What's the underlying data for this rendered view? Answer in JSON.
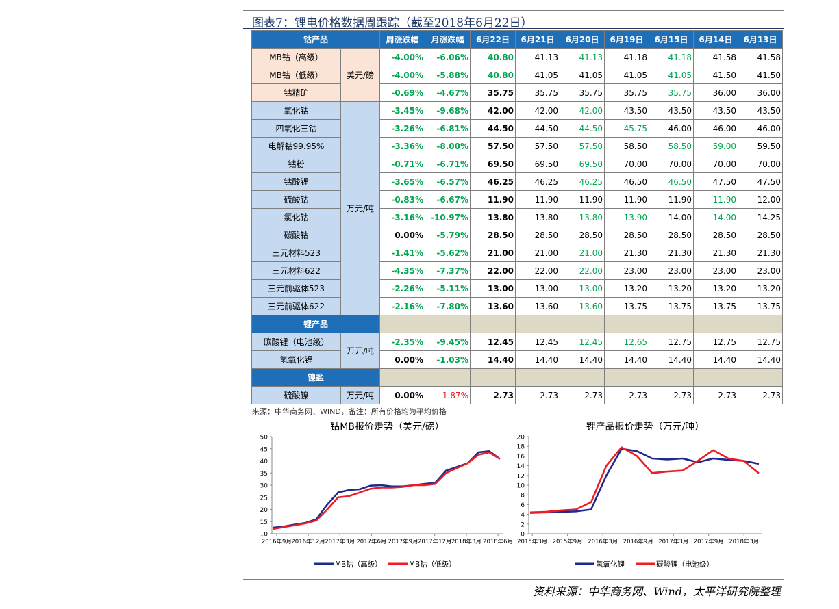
{
  "figure_title": "图表7：锂电价格数据周跟踪（截至2018年6月22日）",
  "table": {
    "headers": [
      "钴产品",
      "周涨跌幅",
      "月涨跌幅",
      "6月22日",
      "6月21日",
      "6月20日",
      "6月19日",
      "6月15日",
      "6月14日",
      "6月13日"
    ],
    "cobalt_mb_unit": "美元/磅",
    "cobalt_unit": "万元/吨",
    "lithium_unit": "万元/吨",
    "nickel_unit": "万元/吨",
    "lithium_section": "锂产品",
    "nickel_section": "镍盐",
    "rows_mb": [
      {
        "name": "MB钴（高级）",
        "w": "-4.00%",
        "m": "-6.06%",
        "v": [
          "40.80",
          "41.13",
          "41.13",
          "41.18",
          "41.18",
          "41.58",
          "41.58"
        ],
        "c": [
          1,
          0,
          1,
          0,
          1,
          0,
          0
        ]
      },
      {
        "name": "MB钴（低级）",
        "w": "-4.00%",
        "m": "-5.88%",
        "v": [
          "40.80",
          "41.05",
          "41.05",
          "41.05",
          "41.05",
          "41.50",
          "41.50"
        ],
        "c": [
          1,
          0,
          0,
          0,
          1,
          0,
          0
        ]
      },
      {
        "name": "钴精矿",
        "w": "-0.69%",
        "m": "-4.67%",
        "v": [
          "35.75",
          "35.75",
          "35.75",
          "35.75",
          "35.75",
          "36.00",
          "36.00"
        ],
        "c": [
          0,
          0,
          0,
          0,
          1,
          0,
          0
        ]
      }
    ],
    "rows_cobalt": [
      {
        "name": "氧化钴",
        "w": "-3.45%",
        "m": "-9.68%",
        "v": [
          "42.00",
          "42.00",
          "42.00",
          "43.50",
          "43.50",
          "43.50",
          "43.50"
        ],
        "c": [
          0,
          0,
          1,
          0,
          0,
          0,
          0
        ]
      },
      {
        "name": "四氧化三钴",
        "w": "-3.26%",
        "m": "-6.81%",
        "v": [
          "44.50",
          "44.50",
          "44.50",
          "45.75",
          "46.00",
          "46.00",
          "46.00"
        ],
        "c": [
          0,
          0,
          1,
          1,
          0,
          0,
          0
        ]
      },
      {
        "name": "电解钴99.95%",
        "w": "-3.36%",
        "m": "-8.00%",
        "v": [
          "57.50",
          "57.50",
          "57.50",
          "58.50",
          "58.50",
          "59.00",
          "59.50"
        ],
        "c": [
          0,
          0,
          1,
          0,
          1,
          1,
          0
        ]
      },
      {
        "name": "钴粉",
        "w": "-0.71%",
        "m": "-6.71%",
        "v": [
          "69.50",
          "69.50",
          "69.50",
          "70.00",
          "70.00",
          "70.00",
          "70.00"
        ],
        "c": [
          0,
          0,
          1,
          0,
          0,
          0,
          0
        ]
      },
      {
        "name": "钴酸锂",
        "w": "-3.65%",
        "m": "-6.57%",
        "v": [
          "46.25",
          "46.25",
          "46.25",
          "46.50",
          "46.50",
          "47.50",
          "47.50"
        ],
        "c": [
          0,
          0,
          1,
          0,
          1,
          0,
          0
        ]
      },
      {
        "name": "硫酸钴",
        "w": "-0.83%",
        "m": "-6.67%",
        "v": [
          "11.90",
          "11.90",
          "11.90",
          "11.90",
          "11.90",
          "11.90",
          "12.00"
        ],
        "c": [
          0,
          0,
          0,
          0,
          0,
          1,
          0
        ]
      },
      {
        "name": "氯化钴",
        "w": "-3.16%",
        "m": "-10.97%",
        "v": [
          "13.80",
          "13.80",
          "13.80",
          "13.90",
          "14.00",
          "14.00",
          "14.25"
        ],
        "c": [
          0,
          0,
          1,
          1,
          0,
          1,
          0
        ]
      },
      {
        "name": "碳酸钴",
        "w": "0.00%",
        "m": "-5.79%",
        "v": [
          "28.50",
          "28.50",
          "28.50",
          "28.50",
          "28.50",
          "28.50",
          "28.50"
        ],
        "c": [
          0,
          0,
          0,
          0,
          0,
          0,
          0
        ]
      },
      {
        "name": "三元材料523",
        "w": "-1.41%",
        "m": "-5.62%",
        "v": [
          "21.00",
          "21.00",
          "21.00",
          "21.30",
          "21.30",
          "21.30",
          "21.30"
        ],
        "c": [
          0,
          0,
          1,
          0,
          0,
          0,
          0
        ]
      },
      {
        "name": "三元材料622",
        "w": "-4.35%",
        "m": "-7.37%",
        "v": [
          "22.00",
          "22.00",
          "22.00",
          "23.00",
          "23.00",
          "23.00",
          "23.00"
        ],
        "c": [
          0,
          0,
          1,
          0,
          0,
          0,
          0
        ]
      },
      {
        "name": "三元前驱体523",
        "w": "-2.26%",
        "m": "-5.11%",
        "v": [
          "13.00",
          "13.00",
          "13.00",
          "13.20",
          "13.20",
          "13.20",
          "13.20"
        ],
        "c": [
          0,
          0,
          1,
          0,
          0,
          0,
          0
        ]
      },
      {
        "name": "三元前驱体622",
        "w": "-2.16%",
        "m": "-7.80%",
        "v": [
          "13.60",
          "13.60",
          "13.60",
          "13.75",
          "13.75",
          "13.75",
          "13.75"
        ],
        "c": [
          0,
          0,
          1,
          0,
          0,
          0,
          0
        ]
      }
    ],
    "rows_lithium": [
      {
        "name": "碳酸锂（电池级）",
        "w": "-2.35%",
        "m": "-9.45%",
        "v": [
          "12.45",
          "12.45",
          "12.45",
          "12.65",
          "12.75",
          "12.75",
          "12.75"
        ],
        "c": [
          0,
          0,
          1,
          1,
          0,
          0,
          0
        ]
      },
      {
        "name": "氢氧化锂",
        "w": "0.00%",
        "m": "-1.03%",
        "v": [
          "14.40",
          "14.40",
          "14.40",
          "14.40",
          "14.40",
          "14.40",
          "14.40"
        ],
        "c": [
          0,
          0,
          0,
          0,
          0,
          0,
          0
        ]
      }
    ],
    "rows_nickel": [
      {
        "name": "硫酸镍",
        "w": "0.00%",
        "m": "1.87%",
        "v": [
          "2.73",
          "2.73",
          "2.73",
          "2.73",
          "2.73",
          "2.73",
          "2.73"
        ],
        "c": [
          0,
          0,
          0,
          0,
          0,
          0,
          0
        ]
      }
    ]
  },
  "source_note": "来源：中华商务网、WIND，备注：所有价格均为平均价格",
  "credit": "资料来源：中华商务网、Wind，太平洋研究院整理",
  "colors": {
    "header_blue": "#1f6fb8",
    "green": "#00a651",
    "red": "#e02020",
    "series_navy": "#1f2a8c",
    "series_red": "#ee1c25"
  },
  "chart_data": [
    {
      "type": "line",
      "title": "钴MB报价走势（美元/磅）",
      "x_tick_labels": [
        "2016年9月",
        "2016年12月",
        "2017年3月",
        "2017年6月",
        "2017年9月",
        "2017年12月",
        "2018年3月",
        "2018年6月"
      ],
      "ylim": [
        10,
        50
      ],
      "y_ticks": [
        10,
        15,
        20,
        25,
        30,
        35,
        40,
        45,
        50
      ],
      "x": [
        "2016-09",
        "2016-10",
        "2016-11",
        "2016-12",
        "2017-01",
        "2017-02",
        "2017-03",
        "2017-04",
        "2017-05",
        "2017-06",
        "2017-07",
        "2017-08",
        "2017-09",
        "2017-10",
        "2017-11",
        "2017-12",
        "2018-01",
        "2018-02",
        "2018-03",
        "2018-04",
        "2018-05",
        "2018-06"
      ],
      "series": [
        {
          "name": "MB钴（高级）",
          "values": [
            12.5,
            13.0,
            13.8,
            14.5,
            16.0,
            22.0,
            27.0,
            28.0,
            28.3,
            29.8,
            30.0,
            29.5,
            29.5,
            30.0,
            30.5,
            31.0,
            36.0,
            37.5,
            39.0,
            43.5,
            44.0,
            40.8
          ]
        },
        {
          "name": "MB钴（低级）",
          "values": [
            12.0,
            12.8,
            13.5,
            14.3,
            15.5,
            20.0,
            25.0,
            25.5,
            27.0,
            28.5,
            29.0,
            29.0,
            29.3,
            30.0,
            30.0,
            30.5,
            35.0,
            37.0,
            39.0,
            42.5,
            43.5,
            40.8
          ]
        }
      ]
    },
    {
      "type": "line",
      "title": "锂产品报价走势（万元/吨）",
      "x_tick_labels": [
        "2015年3月",
        "2015年9月",
        "2016年3月",
        "2016年9月",
        "2017年3月",
        "2017年9月",
        "2018年3月"
      ],
      "ylim": [
        0,
        20
      ],
      "y_ticks": [
        0,
        2,
        4,
        6,
        8,
        10,
        12,
        14,
        16,
        18,
        20
      ],
      "x": [
        "2015-01",
        "2015-03",
        "2015-06",
        "2015-09",
        "2015-11",
        "2016-01",
        "2016-03",
        "2016-06",
        "2016-09",
        "2016-12",
        "2017-03",
        "2017-06",
        "2017-09",
        "2017-12",
        "2018-03",
        "2018-06"
      ],
      "series": [
        {
          "name": "氢氧化锂",
          "values": [
            4.3,
            4.4,
            4.5,
            4.6,
            5.0,
            12.0,
            17.5,
            17.0,
            15.5,
            15.3,
            15.5,
            14.7,
            15.5,
            15.2,
            15.0,
            14.4
          ]
        },
        {
          "name": "碳酸锂（电池级）",
          "values": [
            4.4,
            4.5,
            4.8,
            5.0,
            6.5,
            14.0,
            17.8,
            16.0,
            12.5,
            12.8,
            13.0,
            15.0,
            17.2,
            15.5,
            15.0,
            12.45
          ]
        }
      ]
    }
  ]
}
